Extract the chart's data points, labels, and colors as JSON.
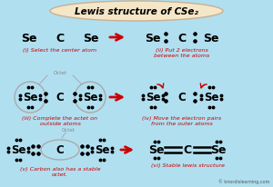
{
  "title": "Lewis structure of CSe₂",
  "bg_color": "#b0dff0",
  "title_box_color": "#f5e6c8",
  "title_box_edge": "#c8b090",
  "arrow_color": "#cc0000",
  "label_color": "#cc0000",
  "atom_color": "#000000",
  "circle_color": "#aaaaaa",
  "watermark": "© knordislearning.com",
  "step_labels": [
    "(i) Select the center atom",
    "(ii) Put 2 electrons\nbetween the atoms",
    "(iii) Complete the actet on\noutside atoms",
    "(iv) Move the electron pairs\nfrom the outer atoms",
    "(v) Carbon also has a stable\noctet.",
    "(vi) Stable lewis structure"
  ],
  "figw": 3.0,
  "figh": 2.07,
  "dpi": 100
}
